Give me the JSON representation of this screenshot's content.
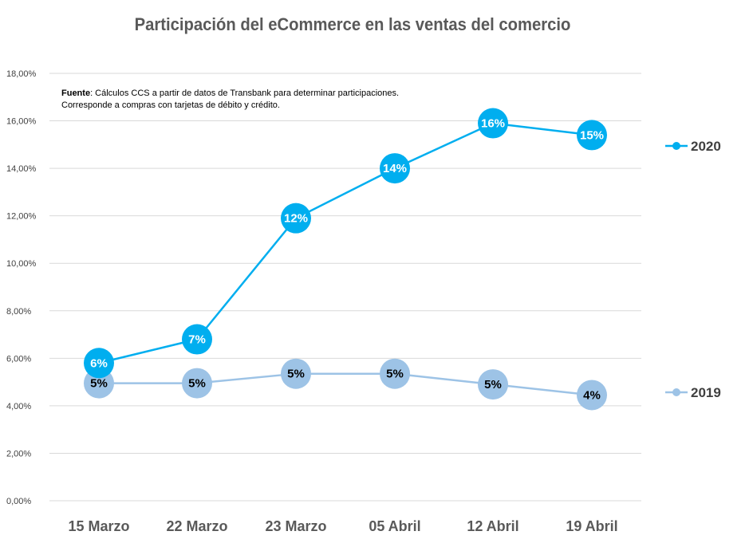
{
  "chart_data": {
    "type": "line",
    "title": "Participación del eCommerce en las ventas del comercio",
    "categories": [
      "15 Marzo",
      "22 Marzo",
      "23 Marzo",
      "05 Abril",
      "12 Abril",
      "19 Abril"
    ],
    "ylim": [
      0,
      18
    ],
    "yticks": [
      "0,00%",
      "2,00%",
      "4,00%",
      "6,00%",
      "8,00%",
      "10,00%",
      "12,00%",
      "14,00%",
      "16,00%",
      "18,00%"
    ],
    "grid": true,
    "legend_position": "right",
    "series": [
      {
        "name": "2020",
        "color": "#00AEEF",
        "label_color": "#ffffff",
        "values": [
          5.8,
          6.8,
          11.9,
          14.0,
          15.9,
          15.4
        ],
        "labels": [
          "6%",
          "7%",
          "12%",
          "14%",
          "16%",
          "15%"
        ]
      },
      {
        "name": "2019",
        "color": "#9DC3E6",
        "label_color": "#000000",
        "values": [
          4.95,
          4.95,
          5.35,
          5.35,
          4.9,
          4.45
        ],
        "labels": [
          "5%",
          "5%",
          "5%",
          "5%",
          "5%",
          "4%"
        ]
      }
    ],
    "annotation": {
      "bold": "Fuente",
      "line1": ": Cálculos CCS a partir de datos de Transbank para determinar participaciones.",
      "line2": "Corresponde a compras con tarjetas de débito y crédito."
    }
  }
}
